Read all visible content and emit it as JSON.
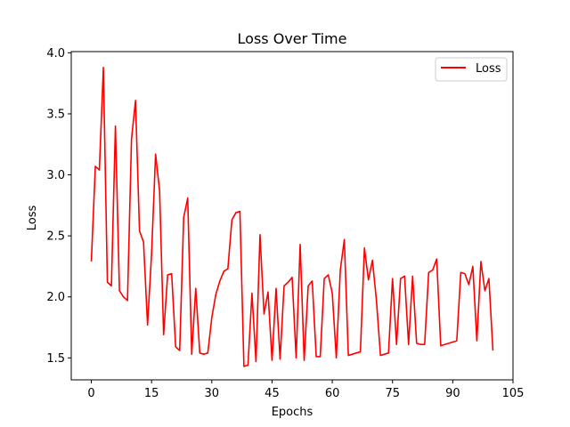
{
  "chart_data": {
    "type": "line",
    "title": "Loss Over Time",
    "xlabel": "Epochs",
    "ylabel": "Loss",
    "xlim": [
      -5,
      105
    ],
    "ylim": [
      1.32,
      4.01
    ],
    "xticks": [
      0,
      15,
      30,
      45,
      60,
      75,
      90,
      105
    ],
    "yticks": [
      1.5,
      2.0,
      2.5,
      3.0,
      3.5,
      4.0
    ],
    "ytick_labels": [
      "1.5",
      "2.0",
      "2.5",
      "3.0",
      "3.5",
      "4.0"
    ],
    "grid": false,
    "legend_position": "top-right",
    "series": [
      {
        "name": "Loss",
        "color": "#ff0000",
        "x": [
          0,
          1,
          2,
          3,
          4,
          5,
          6,
          7,
          8,
          9,
          10,
          11,
          12,
          13,
          14,
          15,
          16,
          17,
          18,
          19,
          20,
          21,
          22,
          23,
          24,
          25,
          26,
          27,
          28,
          29,
          30,
          31,
          32,
          33,
          34,
          35,
          36,
          37,
          38,
          39,
          40,
          41,
          42,
          43,
          44,
          45,
          46,
          47,
          48,
          49,
          50,
          51,
          52,
          53,
          54,
          55,
          56,
          57,
          58,
          59,
          60,
          61,
          62,
          63,
          64,
          65,
          66,
          67,
          68,
          69,
          70,
          71,
          72,
          73,
          74,
          75,
          76,
          77,
          78,
          79,
          80,
          81,
          82,
          83,
          84,
          85,
          86,
          87,
          88,
          89,
          90,
          91,
          92,
          93,
          94,
          95,
          96,
          97,
          98,
          99,
          100
        ],
        "y": [
          2.29,
          3.07,
          3.04,
          3.88,
          2.12,
          2.09,
          3.4,
          2.05,
          2.0,
          1.97,
          3.29,
          3.61,
          2.54,
          2.45,
          1.77,
          2.35,
          3.17,
          2.87,
          1.69,
          2.18,
          2.19,
          1.59,
          1.56,
          2.65,
          2.81,
          1.53,
          2.07,
          1.54,
          1.53,
          1.54,
          1.83,
          2.02,
          2.13,
          2.21,
          2.23,
          2.63,
          2.69,
          2.7,
          1.43,
          1.44,
          2.03,
          1.47,
          2.51,
          1.86,
          2.04,
          1.48,
          2.07,
          1.49,
          2.09,
          2.12,
          2.16,
          1.5,
          2.43,
          1.48,
          2.09,
          2.13,
          1.51,
          1.51,
          2.15,
          2.18,
          2.03,
          1.5,
          2.22,
          2.47,
          1.52,
          1.53,
          1.54,
          1.55,
          2.4,
          2.14,
          2.3,
          1.97,
          1.52,
          1.53,
          1.54,
          2.15,
          1.61,
          2.15,
          2.17,
          1.61,
          2.17,
          1.62,
          1.61,
          1.61,
          2.2,
          2.22,
          2.31,
          1.6,
          1.61,
          1.62,
          1.63,
          1.64,
          2.2,
          2.19,
          2.1,
          2.25,
          1.64,
          2.29,
          2.05,
          2.15,
          1.56
        ]
      }
    ]
  }
}
